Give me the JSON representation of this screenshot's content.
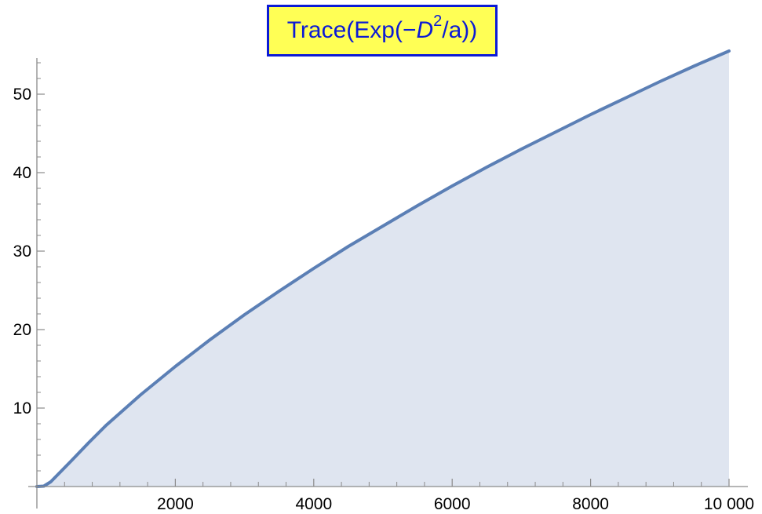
{
  "title": {
    "prefix": "Trace(Exp(−",
    "variable": "D",
    "exponent": "2",
    "suffix": "/a))"
  },
  "colors": {
    "line": "#5b7fb5",
    "fill": "#dfe5f0",
    "axis": "#8a8a8a",
    "title_text": "#0b1ad6",
    "title_border": "#0b1ad6",
    "title_background": "#ffff55"
  },
  "chart_data": {
    "type": "area",
    "title": "Trace(Exp(−D²/a))",
    "xlabel": "",
    "ylabel": "",
    "xlim": [
      0,
      10000
    ],
    "ylim": [
      0,
      55
    ],
    "x_ticks": [
      2000,
      4000,
      6000,
      8000,
      10000
    ],
    "x_tick_labels": [
      "2000",
      "4000",
      "6000",
      "8000",
      "10 000"
    ],
    "y_ticks": [
      10,
      20,
      30,
      40,
      50
    ],
    "y_tick_labels": [
      "10",
      "20",
      "30",
      "40",
      "50"
    ],
    "grid": false,
    "legend": "none",
    "series": [
      {
        "x": [
          0,
          100,
          200,
          300,
          500,
          750,
          1000,
          1500,
          2000,
          2500,
          3000,
          3500,
          4000,
          4500,
          5000,
          5500,
          6000,
          6500,
          7000,
          7500,
          8000,
          8500,
          9000,
          9500,
          10000
        ],
        "values": [
          0,
          0.05,
          0.6,
          1.5,
          3.3,
          5.6,
          7.8,
          11.7,
          15.3,
          18.7,
          21.9,
          24.9,
          27.8,
          30.6,
          33.2,
          35.8,
          38.3,
          40.7,
          43.0,
          45.2,
          47.4,
          49.5,
          51.6,
          53.6,
          55.5
        ]
      }
    ]
  }
}
